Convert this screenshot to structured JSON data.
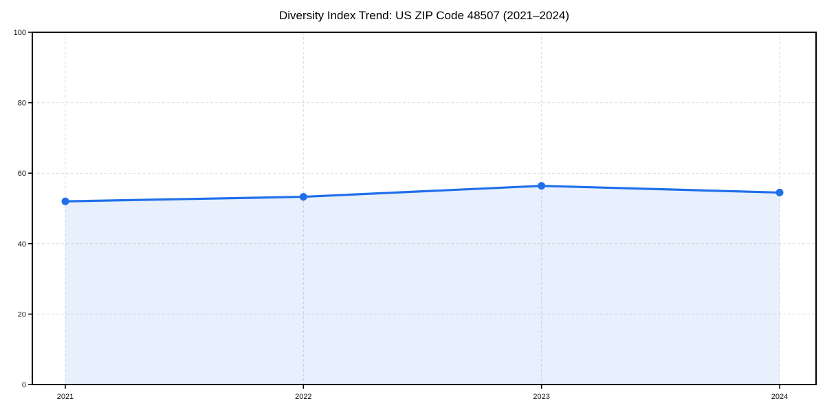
{
  "page": {
    "title": "Diversity Index Trend: US ZIP Code 48507 (2021–2024)"
  },
  "chart_data": {
    "type": "line",
    "title": "Diversity Index Trend: US ZIP Code 48507 (2021–2024)",
    "x": [
      "2021",
      "2022",
      "2023",
      "2024"
    ],
    "series": [
      {
        "name": "Diversity Index",
        "values": [
          52.0,
          53.3,
          56.4,
          54.5
        ]
      }
    ],
    "xlabel": "",
    "ylabel": "",
    "ylim": [
      0,
      100
    ],
    "yticks": [
      0,
      20,
      40,
      60,
      80,
      100
    ],
    "grid": true,
    "grid_style": "dashed",
    "legend": "none",
    "area_fill": true,
    "marker": "circle",
    "colors": {
      "line": "#1f6feb",
      "marker": "#1f6feb",
      "fill": "rgba(31,111,235,0.10)",
      "grid": "#dcdcdc",
      "axis": "#000000",
      "background": "#ffffff",
      "text": "#000000"
    }
  }
}
